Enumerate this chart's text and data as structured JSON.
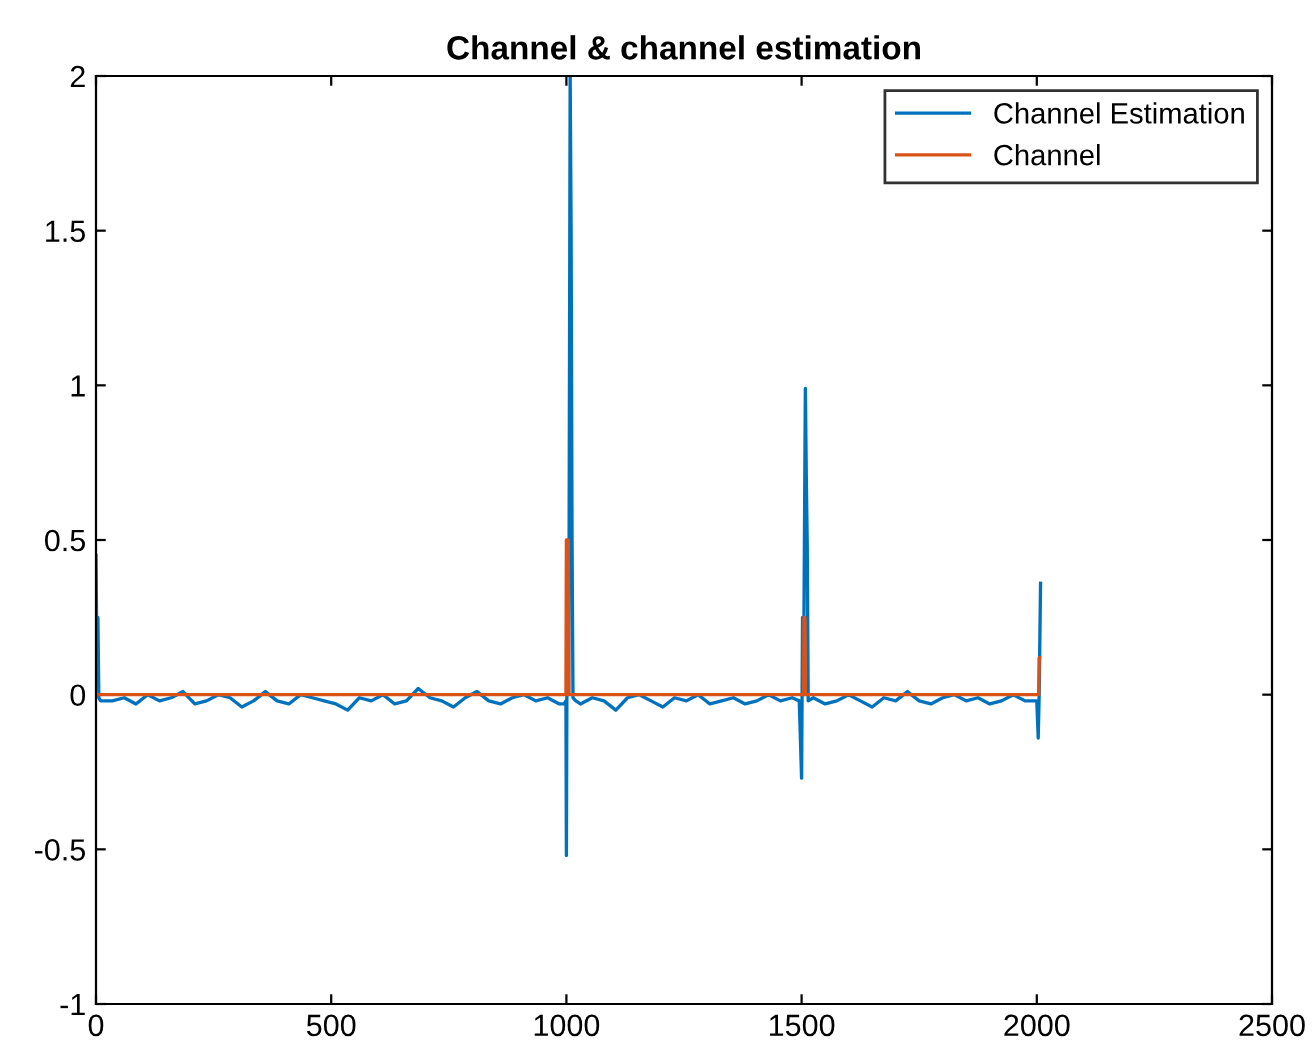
{
  "chart_data": {
    "type": "line",
    "title": "Channel & channel estimation",
    "xlim": [
      0,
      2500
    ],
    "xticks": [
      0,
      500,
      1000,
      1500,
      2000,
      2500
    ],
    "ylim": [
      -1,
      2
    ],
    "yticks": [
      -1,
      -0.5,
      0,
      0.5,
      1,
      1.5,
      2
    ],
    "grid": false,
    "legend": "top right",
    "series": [
      {
        "name": "Channel Estimation",
        "color": "#0072bd",
        "x": [
          0,
          2,
          4,
          6,
          10,
          35,
          60,
          85,
          110,
          135,
          160,
          185,
          210,
          235,
          260,
          285,
          310,
          335,
          360,
          385,
          410,
          435,
          460,
          485,
          510,
          535,
          560,
          585,
          610,
          635,
          660,
          685,
          710,
          735,
          760,
          785,
          810,
          835,
          860,
          885,
          910,
          935,
          960,
          985,
          995,
          999,
          1000,
          1001,
          1003,
          1005,
          1008,
          1010,
          1012,
          1014,
          1020,
          1030,
          1055,
          1080,
          1105,
          1130,
          1155,
          1180,
          1205,
          1230,
          1255,
          1280,
          1305,
          1330,
          1355,
          1380,
          1405,
          1430,
          1455,
          1480,
          1495,
          1500,
          1502,
          1504,
          1508,
          1510,
          1512,
          1514,
          1525,
          1550,
          1575,
          1600,
          1625,
          1650,
          1675,
          1700,
          1725,
          1750,
          1775,
          1800,
          1825,
          1850,
          1875,
          1900,
          1925,
          1950,
          1975,
          1995,
          2000,
          2003,
          2005,
          2008
        ],
        "values": [
          0.45,
          0.1,
          0.25,
          -0.01,
          -0.02,
          -0.02,
          -0.01,
          -0.03,
          0.0,
          -0.02,
          -0.01,
          0.01,
          -0.03,
          -0.02,
          0.0,
          -0.01,
          -0.04,
          -0.02,
          0.01,
          -0.02,
          -0.03,
          0.0,
          -0.01,
          -0.02,
          -0.03,
          -0.05,
          -0.01,
          -0.02,
          0.0,
          -0.03,
          -0.02,
          0.02,
          -0.01,
          -0.02,
          -0.04,
          -0.01,
          0.01,
          -0.02,
          -0.03,
          -0.01,
          0.0,
          -0.02,
          -0.01,
          -0.03,
          -0.03,
          -0.02,
          -0.52,
          0.0,
          0.5,
          0.0,
          2.0,
          1.5,
          0.5,
          -0.01,
          -0.02,
          -0.03,
          -0.01,
          -0.02,
          -0.05,
          -0.01,
          0.0,
          -0.02,
          -0.04,
          -0.01,
          -0.02,
          0.0,
          -0.03,
          -0.02,
          -0.01,
          -0.03,
          -0.02,
          0.0,
          -0.02,
          -0.01,
          -0.02,
          -0.27,
          0.25,
          0.0,
          0.99,
          0.7,
          0.48,
          -0.02,
          -0.01,
          -0.03,
          -0.02,
          0.0,
          -0.02,
          -0.04,
          -0.01,
          -0.02,
          0.01,
          -0.02,
          -0.03,
          -0.01,
          0.0,
          -0.02,
          -0.01,
          -0.03,
          -0.02,
          0.0,
          -0.02,
          -0.02,
          -0.02,
          -0.14,
          0.0,
          0.36
        ]
      },
      {
        "name": "Channel",
        "color": "#d95319",
        "x": [
          0,
          999,
          1000,
          1004,
          1005,
          1504,
          1505,
          1507,
          1508,
          2004,
          2005,
          2006
        ],
        "values": [
          0,
          0,
          0.5,
          0.5,
          0,
          0,
          0.25,
          0.25,
          0,
          0,
          0.12,
          0.12
        ]
      }
    ]
  }
}
